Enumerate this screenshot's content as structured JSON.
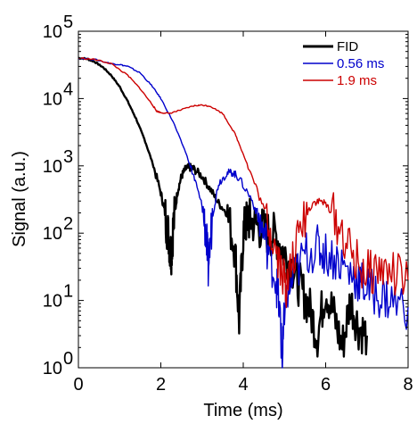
{
  "chart_data": {
    "type": "line",
    "title": "",
    "xlabel": "Time (ms)",
    "ylabel": "Signal (a.u.)",
    "xlim": [
      0,
      8
    ],
    "ylim": [
      1,
      100000
    ],
    "yscale": "log",
    "grid": false,
    "legend_position": "top-right",
    "xticks": [
      {
        "value": 0,
        "label": "0"
      },
      {
        "value": 2,
        "label": "2"
      },
      {
        "value": 4,
        "label": "4"
      },
      {
        "value": 6,
        "label": "6"
      },
      {
        "value": 8,
        "label": "8"
      }
    ],
    "yticks": [
      {
        "value": 1,
        "base": "10",
        "exp": "0"
      },
      {
        "value": 10,
        "base": "10",
        "exp": "1"
      },
      {
        "value": 100,
        "base": "10",
        "exp": "2"
      },
      {
        "value": 1000,
        "base": "10",
        "exp": "3"
      },
      {
        "value": 10000,
        "base": "10",
        "exp": "4"
      },
      {
        "value": 100000,
        "base": "10",
        "exp": "5"
      }
    ],
    "series": [
      {
        "name": "FID",
        "color": "#000000",
        "x": [
          0,
          0.2,
          0.4,
          0.6,
          0.8,
          1.0,
          1.2,
          1.4,
          1.6,
          1.8,
          2.0,
          2.1,
          2.2,
          2.25,
          2.3,
          2.4,
          2.5,
          2.6,
          2.7,
          2.8,
          3.0,
          3.2,
          3.4,
          3.6,
          3.8,
          3.9,
          4.0,
          4.1,
          4.2,
          4.4,
          4.6,
          4.8,
          5.0,
          5.2,
          5.4,
          5.6,
          5.8,
          6.0,
          6.2,
          6.4,
          6.6,
          6.8,
          7.0
        ],
        "y": [
          40000,
          39000,
          35000,
          29000,
          22000,
          15000,
          9000,
          5000,
          2500,
          1100,
          400,
          200,
          80,
          50,
          120,
          400,
          700,
          900,
          950,
          900,
          700,
          450,
          280,
          200,
          60,
          5,
          100,
          160,
          150,
          120,
          100,
          90,
          50,
          30,
          15,
          8,
          3,
          15,
          6,
          2,
          10,
          4,
          3
        ]
      },
      {
        "name": "0.56 ms",
        "color": "#0000cc",
        "x": [
          0,
          0.4,
          0.8,
          1.0,
          1.2,
          1.5,
          1.8,
          2.0,
          2.3,
          2.6,
          2.8,
          3.0,
          3.1,
          3.15,
          3.25,
          3.4,
          3.6,
          3.75,
          3.9,
          4.2,
          4.4,
          4.6,
          4.8,
          4.9,
          4.95,
          5.0,
          5.2,
          5.5,
          5.8,
          6.0,
          6.3,
          6.6,
          6.8,
          7.0,
          7.3,
          7.6,
          8.0
        ],
        "y": [
          40000,
          38000,
          33000,
          32000,
          30000,
          24000,
          15000,
          10000,
          4500,
          1600,
          700,
          250,
          100,
          30,
          180,
          550,
          780,
          800,
          650,
          320,
          150,
          60,
          20,
          5,
          1,
          8,
          20,
          50,
          60,
          50,
          40,
          25,
          20,
          15,
          12,
          10,
          8
        ]
      },
      {
        "name": "1.9 ms",
        "color": "#cc0000",
        "x": [
          0,
          0.4,
          0.8,
          1.2,
          1.5,
          1.8,
          1.9,
          2.0,
          2.2,
          2.5,
          2.8,
          3.0,
          3.2,
          3.5,
          3.8,
          4.0,
          4.3,
          4.6,
          4.8,
          5.0,
          5.05,
          5.2,
          5.5,
          5.7,
          5.9,
          6.1,
          6.4,
          6.7,
          7.0,
          7.3,
          7.6,
          8.0
        ],
        "y": [
          40000,
          38000,
          33000,
          22000,
          14000,
          8000,
          6500,
          6200,
          6000,
          6800,
          7800,
          8000,
          7700,
          6000,
          3000,
          1500,
          500,
          150,
          60,
          20,
          15,
          40,
          180,
          290,
          300,
          230,
          100,
          40,
          25,
          30,
          25,
          20
        ]
      }
    ]
  }
}
